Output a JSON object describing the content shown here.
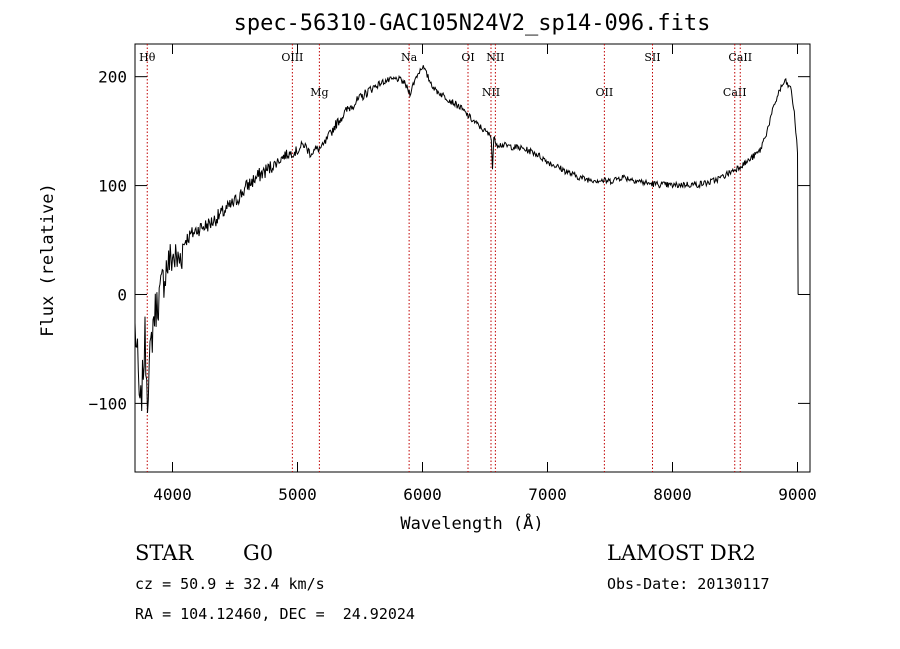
{
  "chart_data": {
    "type": "line",
    "title": "spec-56310-GAC105N24V2_sp14-096.fits",
    "xlabel": "Wavelength (Å)",
    "ylabel": "Flux (relative)",
    "xlim": [
      3700,
      9100
    ],
    "ylim": [
      -163,
      230
    ],
    "x_ticks": [
      4000,
      5000,
      6000,
      7000,
      8000,
      9000
    ],
    "x_tick_labels": [
      "4000",
      "5000",
      "6000",
      "7000",
      "8000",
      "9000"
    ],
    "y_ticks": [
      -100,
      0,
      100,
      200
    ],
    "y_tick_labels": [
      "−100",
      "0",
      "100",
      "200"
    ],
    "series": [
      {
        "color": "#000000",
        "points": [
          [
            3700,
            -30
          ],
          [
            3720,
            -60
          ],
          [
            3740,
            -110
          ],
          [
            3760,
            -80
          ],
          [
            3780,
            -40
          ],
          [
            3800,
            -90
          ],
          [
            3820,
            -60
          ],
          [
            3850,
            -20
          ],
          [
            3900,
            0
          ],
          [
            3950,
            25
          ],
          [
            4000,
            35
          ],
          [
            4050,
            30
          ],
          [
            4100,
            50
          ],
          [
            4150,
            55
          ],
          [
            4200,
            60
          ],
          [
            4300,
            65
          ],
          [
            4400,
            75
          ],
          [
            4500,
            85
          ],
          [
            4600,
            100
          ],
          [
            4700,
            110
          ],
          [
            4800,
            118
          ],
          [
            4900,
            128
          ],
          [
            5000,
            132
          ],
          [
            5050,
            138
          ],
          [
            5100,
            130
          ],
          [
            5150,
            133
          ],
          [
            5200,
            135
          ],
          [
            5250,
            145
          ],
          [
            5300,
            155
          ],
          [
            5400,
            170
          ],
          [
            5500,
            180
          ],
          [
            5600,
            190
          ],
          [
            5700,
            196
          ],
          [
            5800,
            198
          ],
          [
            5850,
            195
          ],
          [
            5900,
            185
          ],
          [
            5950,
            200
          ],
          [
            6000,
            210
          ],
          [
            6050,
            198
          ],
          [
            6100,
            188
          ],
          [
            6200,
            180
          ],
          [
            6300,
            172
          ],
          [
            6400,
            160
          ],
          [
            6500,
            150
          ],
          [
            6550,
            145
          ],
          [
            6560,
            115
          ],
          [
            6570,
            143
          ],
          [
            6600,
            138
          ],
          [
            6700,
            136
          ],
          [
            6800,
            134
          ],
          [
            6900,
            130
          ],
          [
            7000,
            122
          ],
          [
            7100,
            116
          ],
          [
            7200,
            110
          ],
          [
            7300,
            106
          ],
          [
            7400,
            105
          ],
          [
            7500,
            104
          ],
          [
            7600,
            108
          ],
          [
            7700,
            105
          ],
          [
            7800,
            102
          ],
          [
            7900,
            101
          ],
          [
            8000,
            100
          ],
          [
            8100,
            101
          ],
          [
            8200,
            101
          ],
          [
            8300,
            103
          ],
          [
            8400,
            108
          ],
          [
            8500,
            115
          ],
          [
            8600,
            122
          ],
          [
            8700,
            132
          ],
          [
            8750,
            148
          ],
          [
            8800,
            168
          ],
          [
            8850,
            186
          ],
          [
            8900,
            196
          ],
          [
            8950,
            188
          ],
          [
            8980,
            160
          ],
          [
            9000,
            130
          ],
          [
            9005,
            0
          ]
        ]
      }
    ],
    "line_markers": [
      {
        "name": "Hθ",
        "x": 3798,
        "row": 0
      },
      {
        "name": "OIII",
        "x": 4959,
        "row": 0
      },
      {
        "name": "Mg",
        "x": 5175,
        "row": 1
      },
      {
        "name": "Na",
        "x": 5893,
        "row": 0
      },
      {
        "name": "OI",
        "x": 6364,
        "row": 0
      },
      {
        "name": "NII",
        "x": 6548,
        "row": 1
      },
      {
        "name": "NII",
        "x": 6583,
        "row": 0
      },
      {
        "name": "OII",
        "x": 7455,
        "row": 1
      },
      {
        "name": "SII",
        "x": 7840,
        "row": 0
      },
      {
        "name": "CaII",
        "x": 8498,
        "row": 1
      },
      {
        "name": "CaII",
        "x": 8542,
        "row": 0
      }
    ],
    "marker_color": "#c00000",
    "grid": false,
    "legend": "none"
  },
  "info": {
    "object_class": "STAR",
    "subclass": "G0",
    "velocity": "cz = 50.9 ± 32.4 km/s",
    "coords": "RA = 104.12460, DEC =  24.92024",
    "survey": "LAMOST DR2",
    "obs_date": "Obs-Date: 20130117"
  }
}
